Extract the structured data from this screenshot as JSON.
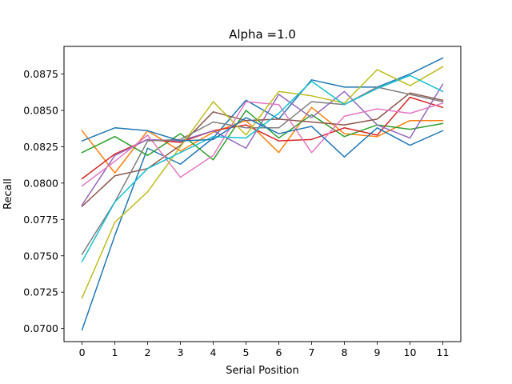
{
  "chart_data": {
    "type": "line",
    "title": "Alpha =1.0",
    "xlabel": "Serial Position",
    "ylabel": "Recall",
    "x": [
      0,
      1,
      2,
      3,
      4,
      5,
      6,
      7,
      8,
      9,
      10,
      11
    ],
    "xlim": [
      -0.55,
      11.55
    ],
    "ylim": [
      0.0691,
      0.0894
    ],
    "yticks": [
      "0.0700",
      "0.0725",
      "0.0750",
      "0.0775",
      "0.0800",
      "0.0825",
      "0.0850",
      "0.0875"
    ],
    "grid": false,
    "legend": "none",
    "series": [
      {
        "color": "#1f77b4",
        "values": [
          0.0699,
          0.0764,
          0.0824,
          0.0813,
          0.0831,
          0.0857,
          0.0844,
          0.0871,
          0.0866,
          0.0866,
          0.0875,
          0.0886
        ]
      },
      {
        "color": "#ff7f0e",
        "values": [
          0.0836,
          0.0807,
          0.0836,
          0.0822,
          0.0835,
          0.0843,
          0.0821,
          0.0852,
          0.0834,
          0.0832,
          0.0843,
          0.0843
        ]
      },
      {
        "color": "#2ca02c",
        "values": [
          0.0821,
          0.0832,
          0.0819,
          0.0834,
          0.0816,
          0.085,
          0.0831,
          0.0847,
          0.0832,
          0.084,
          0.0837,
          0.0841
        ]
      },
      {
        "color": "#d62728",
        "values": [
          0.0803,
          0.082,
          0.083,
          0.0828,
          0.0836,
          0.084,
          0.0829,
          0.083,
          0.0838,
          0.0833,
          0.0859,
          0.0852
        ]
      },
      {
        "color": "#9467bd",
        "values": [
          0.0785,
          0.0819,
          0.083,
          0.0829,
          0.0836,
          0.0824,
          0.0861,
          0.0845,
          0.0863,
          0.084,
          0.0831,
          0.0868
        ]
      },
      {
        "color": "#8c564b",
        "values": [
          0.0784,
          0.0805,
          0.081,
          0.0826,
          0.0849,
          0.0843,
          0.0844,
          0.0842,
          0.084,
          0.0844,
          0.0862,
          0.0857
        ]
      },
      {
        "color": "#e377c2",
        "values": [
          0.0798,
          0.0815,
          0.0833,
          0.0804,
          0.0819,
          0.0856,
          0.0854,
          0.0821,
          0.0846,
          0.0851,
          0.0848,
          0.0855
        ]
      },
      {
        "color": "#7f7f7f",
        "values": [
          0.0751,
          0.0787,
          0.0829,
          0.083,
          0.0842,
          0.0838,
          0.0838,
          0.0856,
          0.0854,
          0.0866,
          0.0861,
          0.0856
        ]
      },
      {
        "color": "#bcbd22",
        "values": [
          0.0721,
          0.0773,
          0.0794,
          0.0825,
          0.0856,
          0.0833,
          0.0863,
          0.086,
          0.0855,
          0.0878,
          0.0867,
          0.088
        ]
      },
      {
        "color": "#17becf",
        "values": [
          0.0746,
          0.0787,
          0.081,
          0.0821,
          0.0832,
          0.0831,
          0.0848,
          0.087,
          0.0854,
          0.0865,
          0.0874,
          0.0863
        ]
      },
      {
        "color": "#1f77b4",
        "values": [
          0.0829,
          0.0838,
          0.0836,
          0.0829,
          0.083,
          0.0845,
          0.0834,
          0.0839,
          0.0818,
          0.0838,
          0.0826,
          0.0836
        ]
      }
    ]
  }
}
